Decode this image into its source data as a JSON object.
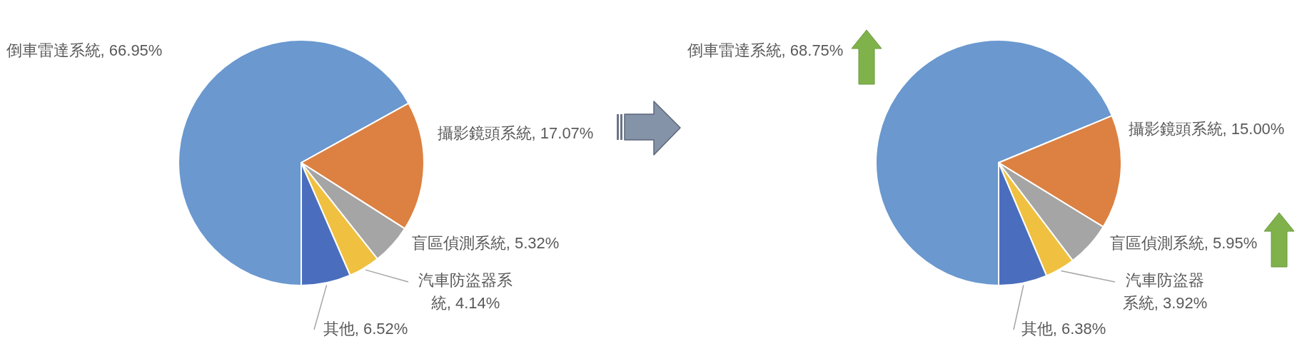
{
  "chart_data": [
    {
      "type": "pie",
      "categories": [
        "倒車雷達系統",
        "攝影鏡頭系統",
        "盲區偵測系統",
        "汽車防盜器系統",
        "其他"
      ],
      "values": [
        66.95,
        17.07,
        5.32,
        4.14,
        6.52
      ],
      "colors": [
        "#6a98cf",
        "#dc8142",
        "#a5a5a5",
        "#f0c040",
        "#4a6ebd"
      ],
      "value_labels": [
        "66.95%",
        "17.07%",
        "5.32%",
        "4.14%",
        "6.52%"
      ]
    },
    {
      "type": "pie",
      "categories": [
        "倒車雷達系統",
        "攝影鏡頭系統",
        "盲區偵測系統",
        "汽車防盜器系統",
        "其他"
      ],
      "values": [
        68.75,
        15.0,
        5.95,
        3.92,
        6.38
      ],
      "colors": [
        "#6a98cf",
        "#dc8142",
        "#a5a5a5",
        "#f0c040",
        "#4a6ebd"
      ],
      "value_labels": [
        "68.75%",
        "15.00%",
        "5.95%",
        "3.92%",
        "6.38%"
      ]
    }
  ]
}
